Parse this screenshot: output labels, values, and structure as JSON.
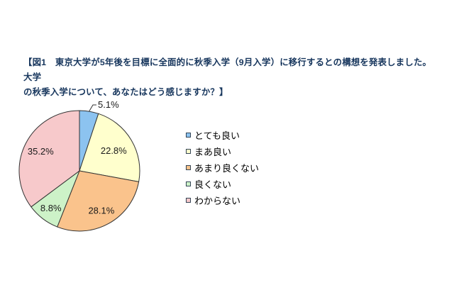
{
  "title": {
    "line1": "【図1　東京大学が5年後を目標に全面的に秋季入学（9月入学）に移行するとの構想を発表しました。大学",
    "line2": "の秋季入学について、あなたはどう感じますか？】",
    "color": "#17365D"
  },
  "chart_data": {
    "type": "pie",
    "figure_label": "図1",
    "categories": [
      "とても良い",
      "まあ良い",
      "あまり良くない",
      "良くない",
      "わからない"
    ],
    "values": [
      5.1,
      22.8,
      28.1,
      8.8,
      35.2
    ],
    "data_labels": [
      "5.1%",
      "22.8%",
      "28.1%",
      "8.8%",
      "35.2%"
    ],
    "colors": [
      "#8CC3F0",
      "#FFFFCD",
      "#FAC38C",
      "#CDF2C8",
      "#F7C9CB"
    ],
    "stroke_color": "#333333",
    "start_angle_deg": 0,
    "direction": "clockwise",
    "legend_position": "right",
    "legend_entries": [
      "とても良い",
      "まあ良い",
      "あまり良くない",
      "良くない",
      "わからない"
    ],
    "background": "#ffffff"
  }
}
